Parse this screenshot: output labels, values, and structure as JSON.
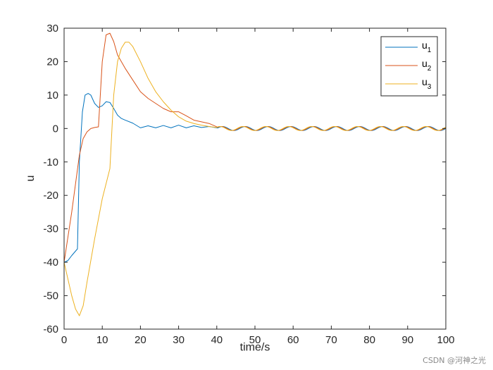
{
  "chart_data": {
    "type": "line",
    "xlabel": "time/s",
    "ylabel": "u",
    "xlim": [
      0,
      100
    ],
    "ylim": [
      -60,
      30
    ],
    "xticks": [
      0,
      10,
      20,
      30,
      40,
      50,
      60,
      70,
      80,
      90,
      100
    ],
    "yticks": [
      -60,
      -50,
      -40,
      -30,
      -20,
      -10,
      0,
      10,
      20,
      30
    ],
    "grid": false,
    "legend_position": "top-right",
    "series": [
      {
        "name": "u1",
        "label_base": "u",
        "label_sub": "1",
        "color": "#0072BD",
        "x": [
          0,
          1,
          2,
          3.5,
          4,
          4.8,
          5.5,
          6.3,
          7,
          8,
          9,
          10,
          11,
          12,
          13,
          14,
          15,
          16,
          18,
          20,
          22,
          24,
          26,
          28,
          30,
          32,
          34,
          36,
          38,
          40,
          100
        ],
        "y": [
          -40,
          -39.5,
          -38,
          -36,
          -10,
          5,
          10,
          10.5,
          10,
          7.5,
          6.3,
          6.8,
          8,
          7.8,
          6,
          4,
          3,
          2.5,
          1.6,
          0.2,
          0.8,
          0.2,
          0.9,
          0.2,
          1.0,
          0.2,
          0.8,
          0.3,
          0.6,
          0.2,
          0
        ]
      },
      {
        "name": "u2",
        "label_base": "u",
        "label_sub": "2",
        "color": "#D95319",
        "x": [
          0,
          2,
          4,
          5,
          6,
          7,
          8,
          9,
          10,
          11,
          12,
          13,
          14,
          16,
          18,
          20,
          22,
          24,
          26,
          28,
          30,
          32,
          34,
          36,
          38,
          40,
          100
        ],
        "y": [
          -40,
          -25,
          -8,
          -3,
          -1,
          0,
          0.3,
          0.5,
          20,
          28,
          28.5,
          26,
          22,
          18,
          14.5,
          11,
          9,
          7.5,
          6,
          5,
          5,
          3.8,
          2.5,
          2,
          1.5,
          0.5,
          0
        ]
      },
      {
        "name": "u3",
        "label_base": "u",
        "label_sub": "3",
        "color": "#EDB120",
        "x": [
          0,
          1,
          2,
          3,
          4,
          5,
          6,
          8,
          10,
          11,
          12,
          13,
          14,
          15,
          16,
          17,
          18,
          20,
          22,
          24,
          26,
          28,
          30,
          32,
          34,
          36,
          38,
          40,
          100
        ],
        "y": [
          -40,
          -45,
          -50,
          -54,
          -56,
          -53,
          -46,
          -33,
          -21,
          -16.5,
          -12,
          10,
          20,
          24,
          25.8,
          25.8,
          24.5,
          20,
          15,
          11,
          8,
          5.5,
          3.5,
          2.2,
          1.5,
          1,
          0.6,
          0.3,
          0
        ]
      }
    ],
    "oscillation_tail": {
      "start": 40,
      "end": 100,
      "amplitude": 0.6,
      "period": 6
    }
  },
  "watermark": "CSDN @河神之光"
}
